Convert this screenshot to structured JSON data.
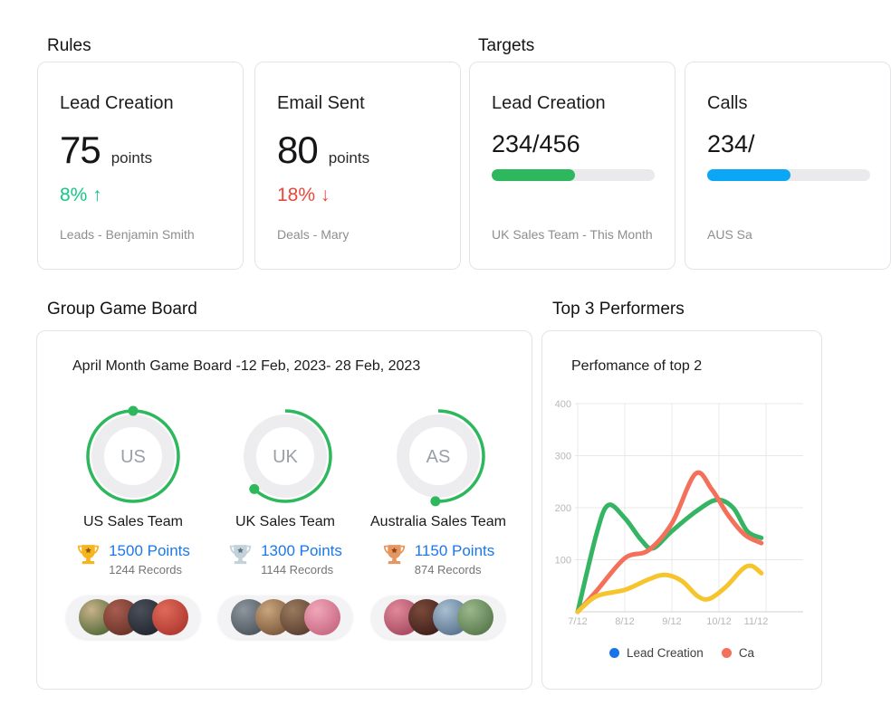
{
  "rules": {
    "title": "Rules",
    "cards": [
      {
        "title": "Lead Creation",
        "value": "75",
        "unit": "points",
        "delta": "8% ↑",
        "direction": "up",
        "footnote": "Leads - Benjamin Smith"
      },
      {
        "title": "Email Sent",
        "value": "80",
        "unit": "points",
        "delta": "18% ↓",
        "direction": "down",
        "footnote": "Deals - Mary"
      }
    ]
  },
  "targets": {
    "title": "Targets",
    "cards": [
      {
        "title": "Lead Creation",
        "value": "234/456",
        "progress_pct": 51,
        "bar_color": "#2db85d",
        "footnote": "UK Sales Team - This Month"
      },
      {
        "title": "Calls",
        "value": "234/",
        "progress_pct": 51,
        "bar_color": "#0ba7f6",
        "footnote": "AUS Sa"
      }
    ]
  },
  "game_board": {
    "title": "Group Game Board",
    "heading": "April Month Game Board -12 Feb, 2023- 28 Feb, 2023",
    "ring_color": "#2db85d",
    "teams": [
      {
        "abbr": "US",
        "name": "US Sales Team",
        "points": "1500 Points",
        "records": "1244 Records",
        "progress_pct": 100,
        "trophy": "gold",
        "trophy_colors": [
          "#f6b41f",
          "#8a5a12"
        ],
        "avatars": [
          [
            "#c9b28a",
            "#556b3a"
          ],
          [
            "#a85c50",
            "#6b3428"
          ],
          [
            "#4a4f5a",
            "#23272f"
          ],
          [
            "#e06a5a",
            "#b03a30"
          ]
        ]
      },
      {
        "abbr": "UK",
        "name": "UK Sales Team",
        "points": "1300 Points",
        "records": "1144 Records",
        "progress_pct": 62,
        "trophy": "silver",
        "trophy_colors": [
          "#c3d1db",
          "#5e7282"
        ],
        "avatars": [
          [
            "#8d969e",
            "#4e565e"
          ],
          [
            "#c9a57e",
            "#7d5a3c"
          ],
          [
            "#9a7a5f",
            "#5c4030"
          ],
          [
            "#f0a7b8",
            "#c96a85"
          ]
        ]
      },
      {
        "abbr": "AS",
        "name": "Australia Sales Team",
        "points": "1150 Points",
        "records": "874 Records",
        "progress_pct": 51,
        "trophy": "bronze",
        "trophy_colors": [
          "#e69760",
          "#8a4420"
        ],
        "avatars": [
          [
            "#e08a9a",
            "#a84a62"
          ],
          [
            "#7a4a3a",
            "#40201a"
          ],
          [
            "#a8bfd0",
            "#5c7590"
          ],
          [
            "#9ab88a",
            "#5a7a4e"
          ]
        ]
      }
    ]
  },
  "top_performers": {
    "title": "Top 3 Performers",
    "chart_title": "Perfomance of top 2"
  },
  "chart_data": {
    "type": "line",
    "title": "Perfomance of top 2",
    "x_unit": "week (n/12)",
    "x_tick_labels": [
      "7/12",
      "8/12",
      "9/12",
      "10/12",
      "11/12"
    ],
    "y_ticks": [
      100,
      200,
      300,
      400
    ],
    "ylim": [
      0,
      400
    ],
    "grid": true,
    "legend_position": "bottom",
    "legend": [
      {
        "label": "Lead Creation",
        "color": "#1a73e8"
      },
      {
        "label": "Ca",
        "color": "#f4705b"
      }
    ],
    "series": [
      {
        "name": "green-series",
        "color": "#35b564",
        "points": [
          [
            7,
            0
          ],
          [
            7.4,
            150
          ],
          [
            7.65,
            205
          ],
          [
            8.0,
            180
          ],
          [
            8.35,
            138
          ],
          [
            8.6,
            122
          ],
          [
            9.0,
            155
          ],
          [
            9.5,
            192
          ],
          [
            9.95,
            215
          ],
          [
            10.3,
            200
          ],
          [
            10.6,
            155
          ],
          [
            10.9,
            142
          ]
        ]
      },
      {
        "name": "coral-series",
        "color": "#f4705b",
        "points": [
          [
            7,
            0
          ],
          [
            7.4,
            40
          ],
          [
            8.0,
            103
          ],
          [
            8.5,
            118
          ],
          [
            9.0,
            170
          ],
          [
            9.5,
            265
          ],
          [
            9.85,
            235
          ],
          [
            10.2,
            185
          ],
          [
            10.55,
            148
          ],
          [
            10.9,
            132
          ]
        ]
      },
      {
        "name": "yellow-series",
        "color": "#f6c52e",
        "points": [
          [
            7,
            0
          ],
          [
            7.4,
            30
          ],
          [
            8.0,
            42
          ],
          [
            8.5,
            62
          ],
          [
            8.85,
            71
          ],
          [
            9.2,
            60
          ],
          [
            9.55,
            30
          ],
          [
            9.8,
            25
          ],
          [
            10.15,
            48
          ],
          [
            10.5,
            82
          ],
          [
            10.7,
            88
          ],
          [
            10.9,
            74
          ]
        ]
      }
    ]
  }
}
